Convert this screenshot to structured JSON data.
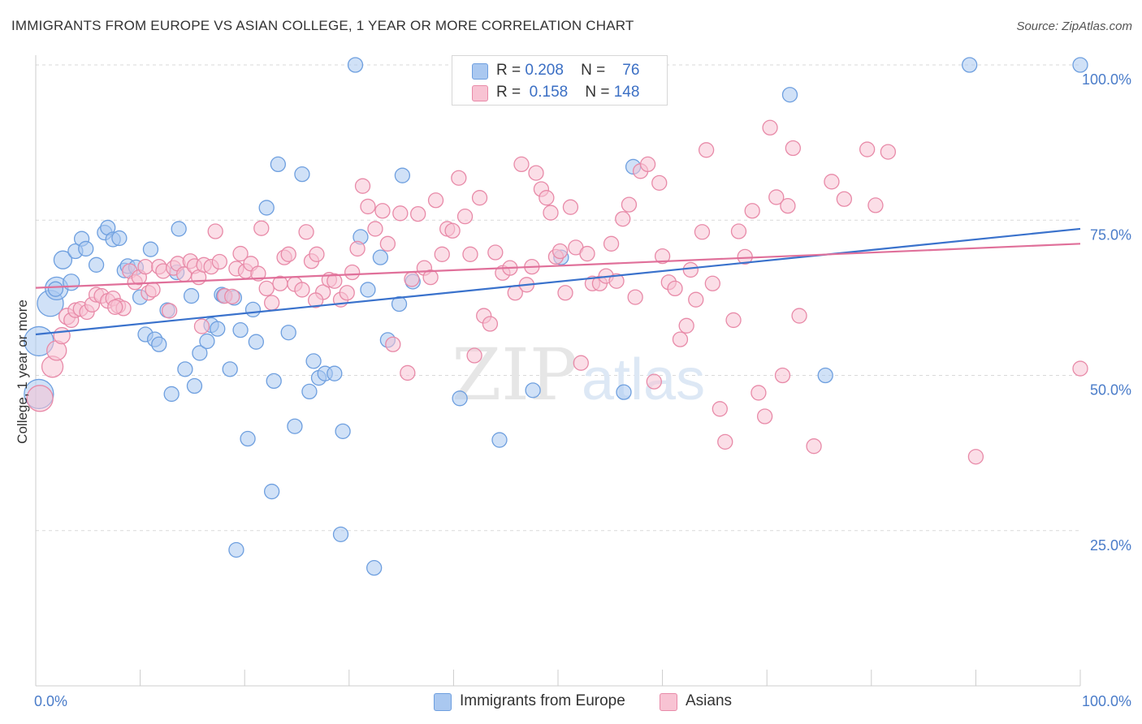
{
  "title": "IMMIGRANTS FROM EUROPE VS ASIAN COLLEGE, 1 YEAR OR MORE CORRELATION CHART",
  "source": "Source: ZipAtlas.com",
  "watermark": {
    "zip": "ZIP",
    "atlas": "atlas"
  },
  "legend": {
    "rows": [
      {
        "r_label": "R =",
        "r_value": "0.208",
        "n_label": "N =",
        "n_value": "76",
        "color": "#aac8f0",
        "border": "#6e9fdf"
      },
      {
        "r_label": "R =",
        "r_value": "0.158",
        "n_label": "N =",
        "n_value": "148",
        "color": "#f8c3d3",
        "border": "#e88aa8"
      }
    ]
  },
  "bottom_legend": [
    {
      "label": "Immigrants from Europe",
      "color": "#aac8f0",
      "border": "#6e9fdf"
    },
    {
      "label": "Asians",
      "color": "#f8c3d3",
      "border": "#e88aa8"
    }
  ],
  "chart_data": {
    "type": "scatter",
    "ylabel": "College, 1 year or more",
    "xlim": [
      0,
      100
    ],
    "ylim": [
      0,
      100
    ],
    "x_tick_labels": [
      {
        "value": 0,
        "label": "0.0%"
      },
      {
        "value": 100,
        "label": "100.0%"
      }
    ],
    "y_tick_labels": [
      {
        "value": 25,
        "label": "25.0%"
      },
      {
        "value": 50,
        "label": "50.0%"
      },
      {
        "value": 75,
        "label": "75.0%"
      },
      {
        "value": 100,
        "label": "100.0%"
      }
    ],
    "grid": true,
    "series": [
      {
        "name": "Immigrants from Europe",
        "color": "#6e9fdf",
        "fill": "#aac8f0",
        "line_color": "#3a72cc",
        "trend": {
          "x": [
            0,
            100
          ],
          "y": [
            56.6,
            73.6
          ]
        },
        "points": [
          [
            0.3,
            55.5,
            18
          ],
          [
            0.3,
            47,
            18
          ],
          [
            1.4,
            61.6,
            16
          ],
          [
            2,
            64,
            14
          ],
          [
            2.6,
            68.6,
            11
          ],
          [
            3.4,
            65,
            10
          ],
          [
            3.8,
            70,
            9
          ],
          [
            4.4,
            72,
            9
          ],
          [
            4.8,
            70.4,
            9
          ],
          [
            5.8,
            67.8,
            9
          ],
          [
            6.6,
            73,
            9
          ],
          [
            6.9,
            73.8,
            9
          ],
          [
            7.4,
            71.9,
            9
          ],
          [
            8,
            72.1,
            9
          ],
          [
            8.5,
            66.9,
            9
          ],
          [
            8.8,
            67.6,
            9
          ],
          [
            9.6,
            67.4,
            9
          ],
          [
            10,
            62.6,
            9
          ],
          [
            10.5,
            56.6,
            9
          ],
          [
            11,
            70.3,
            9
          ],
          [
            11.4,
            55.8,
            9
          ],
          [
            11.8,
            55,
            9
          ],
          [
            12.6,
            60.5,
            9
          ],
          [
            13,
            47,
            9
          ],
          [
            13.5,
            66.6,
            9
          ],
          [
            13.7,
            73.6,
            9
          ],
          [
            14.3,
            51,
            9
          ],
          [
            14.9,
            62.8,
            9
          ],
          [
            15.2,
            48.3,
            9
          ],
          [
            15.7,
            53.6,
            9
          ],
          [
            16.4,
            55.5,
            9
          ],
          [
            16.8,
            58.1,
            9
          ],
          [
            17.4,
            57.5,
            9
          ],
          [
            17.8,
            63,
            9
          ],
          [
            18,
            62.8,
            9
          ],
          [
            18.6,
            51,
            9
          ],
          [
            19,
            62.5,
            9
          ],
          [
            19.2,
            21.9,
            9
          ],
          [
            19.6,
            57.3,
            9
          ],
          [
            20.3,
            39.8,
            9
          ],
          [
            20.8,
            60.6,
            9
          ],
          [
            21.1,
            55.4,
            9
          ],
          [
            22.1,
            77,
            9
          ],
          [
            22.6,
            31.3,
            9
          ],
          [
            22.8,
            49.1,
            9
          ],
          [
            23.2,
            84,
            9
          ],
          [
            24.2,
            56.9,
            9
          ],
          [
            24.8,
            41.8,
            9
          ],
          [
            25.5,
            82.4,
            9
          ],
          [
            26.2,
            47.4,
            9
          ],
          [
            26.6,
            52.3,
            9
          ],
          [
            27.1,
            49.6,
            9
          ],
          [
            27.7,
            50.3,
            9
          ],
          [
            28.6,
            50.3,
            9
          ],
          [
            29.2,
            24.4,
            9
          ],
          [
            29.4,
            41,
            9
          ],
          [
            30.6,
            100,
            9
          ],
          [
            31.1,
            72.3,
            9
          ],
          [
            31.8,
            63.8,
            9
          ],
          [
            32.4,
            19,
            9
          ],
          [
            33,
            69,
            9
          ],
          [
            33.7,
            55.7,
            9
          ],
          [
            34.8,
            61.5,
            9
          ],
          [
            35.1,
            82.2,
            9
          ],
          [
            36.1,
            65.1,
            9
          ],
          [
            40.6,
            46.3,
            9
          ],
          [
            44.4,
            39.6,
            9
          ],
          [
            47.6,
            47.6,
            9
          ],
          [
            50.3,
            69,
            9
          ],
          [
            56.3,
            47.3,
            9
          ],
          [
            57.2,
            83.6,
            9
          ],
          [
            72.2,
            95.2,
            9
          ],
          [
            75.6,
            50,
            9
          ],
          [
            89.4,
            100,
            9
          ],
          [
            100,
            100,
            9
          ],
          [
            1.9,
            63.9,
            9
          ]
        ]
      },
      {
        "name": "Asians",
        "color": "#e88aa8",
        "fill": "#f8c3d3",
        "line_color": "#e0709a",
        "trend": {
          "x": [
            0,
            100
          ],
          "y": [
            64.1,
            71.2
          ]
        },
        "points": [
          [
            0.4,
            46.3,
            16
          ],
          [
            1.6,
            51.4,
            13
          ],
          [
            2,
            54,
            12
          ],
          [
            2.5,
            56.4,
            10
          ],
          [
            3,
            59.5,
            10
          ],
          [
            3.4,
            58.9,
            9
          ],
          [
            3.8,
            60.5,
            9
          ],
          [
            4.3,
            60.7,
            9
          ],
          [
            4.9,
            60.2,
            9
          ],
          [
            5.4,
            61.4,
            9
          ],
          [
            5.8,
            63,
            9
          ],
          [
            6.3,
            62.8,
            9
          ],
          [
            6.9,
            62,
            9
          ],
          [
            7.4,
            62.4,
            9
          ],
          [
            7.9,
            61.2,
            9
          ],
          [
            8.4,
            60.8,
            9
          ],
          [
            9,
            66.8,
            9
          ],
          [
            9.5,
            65,
            9
          ],
          [
            9.9,
            65.8,
            9
          ],
          [
            10.5,
            67.5,
            9
          ],
          [
            10.8,
            63.3,
            9
          ],
          [
            11.2,
            63.8,
            9
          ],
          [
            11.8,
            67.5,
            9
          ],
          [
            12.2,
            66.8,
            9
          ],
          [
            12.8,
            60.4,
            9
          ],
          [
            13.2,
            67.3,
            9
          ],
          [
            13.6,
            68,
            9
          ],
          [
            14.2,
            66.3,
            9
          ],
          [
            14.8,
            68.4,
            9
          ],
          [
            15.2,
            67.6,
            9
          ],
          [
            15.6,
            65.8,
            9
          ],
          [
            16.1,
            67.8,
            9
          ],
          [
            16.8,
            67.5,
            9
          ],
          [
            17.2,
            73.2,
            9
          ],
          [
            17.6,
            68.3,
            9
          ],
          [
            18.1,
            62.8,
            9
          ],
          [
            18.8,
            62.7,
            9
          ],
          [
            19.2,
            67.2,
            9
          ],
          [
            19.6,
            69.6,
            9
          ],
          [
            20.1,
            66.8,
            9
          ],
          [
            20.6,
            68,
            9
          ],
          [
            21.3,
            66.4,
            9
          ],
          [
            21.6,
            73.7,
            9
          ],
          [
            22.1,
            64,
            9
          ],
          [
            22.6,
            61.7,
            9
          ],
          [
            23.4,
            64.8,
            9
          ],
          [
            23.8,
            69,
            9
          ],
          [
            24.2,
            69.5,
            9
          ],
          [
            24.8,
            64.7,
            9
          ],
          [
            25.5,
            63.8,
            9
          ],
          [
            25.9,
            73.1,
            9
          ],
          [
            26.4,
            68.4,
            9
          ],
          [
            26.9,
            69.5,
            9
          ],
          [
            27.5,
            63.4,
            9
          ],
          [
            28.1,
            65.4,
            9
          ],
          [
            28.6,
            65.2,
            9
          ],
          [
            29.2,
            62.2,
            9
          ],
          [
            29.8,
            63.3,
            9
          ],
          [
            30.3,
            66.6,
            9
          ],
          [
            30.8,
            70.4,
            9
          ],
          [
            31.3,
            80.5,
            9
          ],
          [
            31.8,
            77.2,
            9
          ],
          [
            32.5,
            73.6,
            9
          ],
          [
            33.2,
            76.5,
            9
          ],
          [
            33.7,
            71.2,
            9
          ],
          [
            34.2,
            55,
            9
          ],
          [
            34.9,
            76.1,
            9
          ],
          [
            35.6,
            50.4,
            9
          ],
          [
            36,
            65.5,
            9
          ],
          [
            36.6,
            76,
            9
          ],
          [
            37.2,
            67.3,
            9
          ],
          [
            37.8,
            65.8,
            9
          ],
          [
            38.3,
            78.2,
            9
          ],
          [
            38.9,
            69.5,
            9
          ],
          [
            39.4,
            73.6,
            9
          ],
          [
            39.9,
            73.3,
            9
          ],
          [
            40.5,
            81.8,
            9
          ],
          [
            41.1,
            75.6,
            9
          ],
          [
            41.6,
            69.5,
            9
          ],
          [
            42,
            53.2,
            9
          ],
          [
            42.5,
            78.6,
            9
          ],
          [
            42.9,
            59.6,
            9
          ],
          [
            43.5,
            58.3,
            9
          ],
          [
            44,
            69.8,
            9
          ],
          [
            44.7,
            66.5,
            9
          ],
          [
            45.4,
            67.3,
            9
          ],
          [
            45.9,
            63.3,
            9
          ],
          [
            46.5,
            84,
            9
          ],
          [
            47,
            64.6,
            9
          ],
          [
            47.5,
            67.5,
            9
          ],
          [
            47.9,
            82.6,
            9
          ],
          [
            48.4,
            80,
            9
          ],
          [
            48.9,
            78.6,
            9
          ],
          [
            49.3,
            76.2,
            9
          ],
          [
            49.8,
            69.1,
            9
          ],
          [
            50.2,
            70,
            9
          ],
          [
            50.7,
            63.3,
            9
          ],
          [
            51.2,
            77.1,
            9
          ],
          [
            51.7,
            70.6,
            9
          ],
          [
            52.2,
            52,
            9
          ],
          [
            52.8,
            69.6,
            9
          ],
          [
            53.3,
            64.8,
            9
          ],
          [
            54,
            64.8,
            9
          ],
          [
            54.6,
            66,
            9
          ],
          [
            55.1,
            71.2,
            9
          ],
          [
            55.6,
            65.2,
            9
          ],
          [
            56.2,
            75.2,
            9
          ],
          [
            56.8,
            77.5,
            9
          ],
          [
            57.4,
            62.6,
            9
          ],
          [
            57.9,
            82.9,
            9
          ],
          [
            58.6,
            84,
            9
          ],
          [
            59.2,
            49,
            9
          ],
          [
            59.7,
            81,
            9
          ],
          [
            60,
            69.2,
            9
          ],
          [
            60.6,
            65,
            9
          ],
          [
            61.2,
            64,
            9
          ],
          [
            61.7,
            55.8,
            9
          ],
          [
            62.3,
            58,
            9
          ],
          [
            62.7,
            67,
            9
          ],
          [
            63.2,
            62.2,
            9
          ],
          [
            63.8,
            73.1,
            9
          ],
          [
            64.2,
            86.3,
            9
          ],
          [
            64.8,
            64.8,
            9
          ],
          [
            65.5,
            44.6,
            9
          ],
          [
            66,
            39.3,
            9
          ],
          [
            66.8,
            58.9,
            9
          ],
          [
            67.3,
            73.2,
            9
          ],
          [
            67.9,
            69.1,
            9
          ],
          [
            68.6,
            76.5,
            9
          ],
          [
            69.2,
            47.2,
            9
          ],
          [
            69.8,
            43.4,
            9
          ],
          [
            70.3,
            89.9,
            9
          ],
          [
            70.9,
            78.7,
            9
          ],
          [
            71.5,
            50,
            9
          ],
          [
            72,
            77.3,
            9
          ],
          [
            72.5,
            86.6,
            9
          ],
          [
            73.1,
            59.6,
            9
          ],
          [
            74.5,
            38.6,
            9
          ],
          [
            76.2,
            81.2,
            9
          ],
          [
            77.4,
            78.4,
            9
          ],
          [
            79.6,
            86.4,
            9
          ],
          [
            80.4,
            77.4,
            9
          ],
          [
            81.6,
            86,
            9
          ],
          [
            90,
            36.9,
            9
          ],
          [
            100,
            51.1,
            9
          ],
          [
            7.6,
            61,
            9
          ],
          [
            15.9,
            57.9,
            9
          ],
          [
            26.8,
            62.1,
            9
          ]
        ]
      }
    ]
  }
}
